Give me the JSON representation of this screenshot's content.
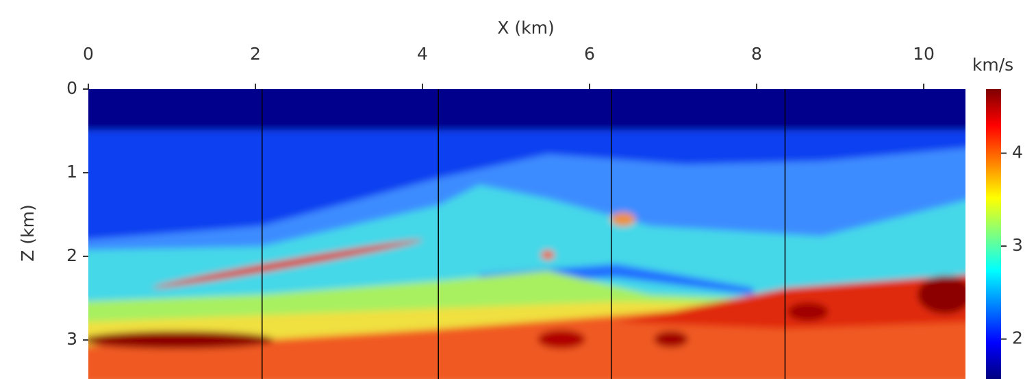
{
  "chart_data": {
    "type": "heatmap",
    "x_label": "X (km)",
    "y_label": "Z (km)",
    "xlim": [
      0,
      10.5
    ],
    "xticks": [
      0,
      2,
      4,
      6,
      8,
      10
    ],
    "ylim": [
      0,
      3.45
    ],
    "yticks": [
      0,
      1,
      2,
      3
    ],
    "colorbar": {
      "label": "km/s",
      "lim": [
        1.57,
        4.69
      ],
      "ticks": [
        2,
        3,
        4
      ],
      "colormap": "jet"
    },
    "well_x": [
      2.08,
      4.19,
      6.26,
      8.34
    ],
    "well_color": "#000000"
  }
}
